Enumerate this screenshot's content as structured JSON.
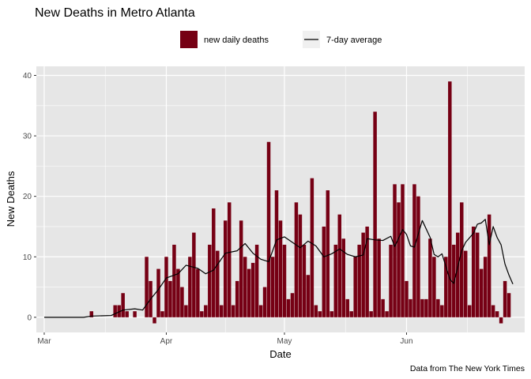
{
  "chart_data": {
    "type": "bar",
    "title": "New Deaths in Metro Atlanta",
    "xlabel": "Date",
    "ylabel": "New Deaths",
    "caption": "Data from The New York Times",
    "legend": {
      "placement": "top",
      "bar_label": "new daily deaths",
      "line_label": "7-day average"
    },
    "x_ticks": [
      {
        "label": "Mar",
        "day": 0
      },
      {
        "label": "Apr",
        "day": 31
      },
      {
        "label": "May",
        "day": 61
      },
      {
        "label": "Jun",
        "day": 92
      }
    ],
    "y_ticks": [
      0,
      10,
      20,
      30,
      40
    ],
    "xlim": [
      -2,
      122
    ],
    "ylim": [
      -2.5,
      41.5
    ],
    "grid": true,
    "colors": {
      "bar": "#760014",
      "line": "#000000",
      "panel": "#e6e6e6",
      "grid": "#ffffff"
    },
    "daily_deaths": [
      {
        "day": 12,
        "value": 1
      },
      {
        "day": 18,
        "value": 2
      },
      {
        "day": 19,
        "value": 2
      },
      {
        "day": 20,
        "value": 4
      },
      {
        "day": 21,
        "value": 1
      },
      {
        "day": 23,
        "value": 1
      },
      {
        "day": 26,
        "value": 10
      },
      {
        "day": 27,
        "value": 6
      },
      {
        "day": 28,
        "value": -1
      },
      {
        "day": 29,
        "value": 8
      },
      {
        "day": 30,
        "value": 1
      },
      {
        "day": 31,
        "value": 10
      },
      {
        "day": 32,
        "value": 6
      },
      {
        "day": 33,
        "value": 12
      },
      {
        "day": 34,
        "value": 8
      },
      {
        "day": 35,
        "value": 5
      },
      {
        "day": 36,
        "value": 2
      },
      {
        "day": 37,
        "value": 10
      },
      {
        "day": 38,
        "value": 14
      },
      {
        "day": 39,
        "value": 8
      },
      {
        "day": 40,
        "value": 1
      },
      {
        "day": 41,
        "value": 2
      },
      {
        "day": 42,
        "value": 12
      },
      {
        "day": 43,
        "value": 18
      },
      {
        "day": 44,
        "value": 11
      },
      {
        "day": 45,
        "value": 2
      },
      {
        "day": 46,
        "value": 16
      },
      {
        "day": 47,
        "value": 19
      },
      {
        "day": 48,
        "value": 2
      },
      {
        "day": 49,
        "value": 6
      },
      {
        "day": 50,
        "value": 16
      },
      {
        "day": 51,
        "value": 10
      },
      {
        "day": 52,
        "value": 8
      },
      {
        "day": 53,
        "value": 9
      },
      {
        "day": 54,
        "value": 12
      },
      {
        "day": 55,
        "value": 2
      },
      {
        "day": 56,
        "value": 5
      },
      {
        "day": 57,
        "value": 29
      },
      {
        "day": 58,
        "value": 10
      },
      {
        "day": 59,
        "value": 21
      },
      {
        "day": 60,
        "value": 16
      },
      {
        "day": 61,
        "value": 12
      },
      {
        "day": 62,
        "value": 3
      },
      {
        "day": 63,
        "value": 4
      },
      {
        "day": 64,
        "value": 19
      },
      {
        "day": 65,
        "value": 17
      },
      {
        "day": 66,
        "value": 12
      },
      {
        "day": 67,
        "value": 7
      },
      {
        "day": 68,
        "value": 23
      },
      {
        "day": 69,
        "value": 2
      },
      {
        "day": 70,
        "value": 1
      },
      {
        "day": 71,
        "value": 15
      },
      {
        "day": 72,
        "value": 21
      },
      {
        "day": 73,
        "value": 1
      },
      {
        "day": 74,
        "value": 12
      },
      {
        "day": 75,
        "value": 17
      },
      {
        "day": 76,
        "value": 13
      },
      {
        "day": 77,
        "value": 3
      },
      {
        "day": 78,
        "value": 1
      },
      {
        "day": 79,
        "value": 10
      },
      {
        "day": 80,
        "value": 12
      },
      {
        "day": 81,
        "value": 14
      },
      {
        "day": 82,
        "value": 15
      },
      {
        "day": 83,
        "value": 1
      },
      {
        "day": 84,
        "value": 34
      },
      {
        "day": 85,
        "value": 13
      },
      {
        "day": 86,
        "value": 3
      },
      {
        "day": 87,
        "value": 1
      },
      {
        "day": 88,
        "value": 12
      },
      {
        "day": 89,
        "value": 22
      },
      {
        "day": 90,
        "value": 19
      },
      {
        "day": 91,
        "value": 22
      },
      {
        "day": 92,
        "value": 6
      },
      {
        "day": 93,
        "value": 3
      },
      {
        "day": 94,
        "value": 22
      },
      {
        "day": 95,
        "value": 20
      },
      {
        "day": 96,
        "value": 3
      },
      {
        "day": 97,
        "value": 3
      },
      {
        "day": 98,
        "value": 13
      },
      {
        "day": 99,
        "value": 10
      },
      {
        "day": 100,
        "value": 3
      },
      {
        "day": 101,
        "value": 2
      },
      {
        "day": 102,
        "value": 10
      },
      {
        "day": 103,
        "value": 39
      },
      {
        "day": 104,
        "value": 12
      },
      {
        "day": 105,
        "value": 14
      },
      {
        "day": 106,
        "value": 19
      },
      {
        "day": 107,
        "value": 11
      },
      {
        "day": 108,
        "value": 2
      },
      {
        "day": 109,
        "value": 15
      },
      {
        "day": 110,
        "value": 14
      },
      {
        "day": 111,
        "value": 8
      },
      {
        "day": 112,
        "value": 10
      },
      {
        "day": 113,
        "value": 17
      },
      {
        "day": 114,
        "value": 2
      },
      {
        "day": 115,
        "value": 1
      },
      {
        "day": 116,
        "value": -1
      },
      {
        "day": 117,
        "value": 6
      },
      {
        "day": 118,
        "value": 4
      }
    ],
    "seven_day_average": [
      {
        "day": 0,
        "value": 0
      },
      {
        "day": 10,
        "value": 0
      },
      {
        "day": 12,
        "value": 0.2
      },
      {
        "day": 17,
        "value": 0.3
      },
      {
        "day": 20,
        "value": 1.2
      },
      {
        "day": 23,
        "value": 1.4
      },
      {
        "day": 25,
        "value": 1.2
      },
      {
        "day": 27,
        "value": 3.0
      },
      {
        "day": 29,
        "value": 4.6
      },
      {
        "day": 31,
        "value": 6.5
      },
      {
        "day": 34,
        "value": 7.2
      },
      {
        "day": 36,
        "value": 8.6
      },
      {
        "day": 39,
        "value": 8.1
      },
      {
        "day": 41,
        "value": 7.2
      },
      {
        "day": 43,
        "value": 7.8
      },
      {
        "day": 46,
        "value": 10.6
      },
      {
        "day": 49,
        "value": 11.0
      },
      {
        "day": 51,
        "value": 12.2
      },
      {
        "day": 53,
        "value": 10.6
      },
      {
        "day": 55,
        "value": 9.6
      },
      {
        "day": 57,
        "value": 9.2
      },
      {
        "day": 59,
        "value": 12.8
      },
      {
        "day": 61,
        "value": 13.3
      },
      {
        "day": 63,
        "value": 12.4
      },
      {
        "day": 65,
        "value": 11.5
      },
      {
        "day": 67,
        "value": 12.6
      },
      {
        "day": 69,
        "value": 11.8
      },
      {
        "day": 71,
        "value": 10.0
      },
      {
        "day": 73,
        "value": 10.5
      },
      {
        "day": 75,
        "value": 11.3
      },
      {
        "day": 77,
        "value": 10.4
      },
      {
        "day": 79,
        "value": 10.0
      },
      {
        "day": 81,
        "value": 10.3
      },
      {
        "day": 82,
        "value": 13.0
      },
      {
        "day": 84,
        "value": 12.8
      },
      {
        "day": 86,
        "value": 12.7
      },
      {
        "day": 88,
        "value": 13.4
      },
      {
        "day": 89,
        "value": 11.7
      },
      {
        "day": 91,
        "value": 14.5
      },
      {
        "day": 92,
        "value": 13.7
      },
      {
        "day": 93,
        "value": 11.8
      },
      {
        "day": 94,
        "value": 11.6
      },
      {
        "day": 96,
        "value": 16.0
      },
      {
        "day": 98,
        "value": 13.2
      },
      {
        "day": 99,
        "value": 10.4
      },
      {
        "day": 100,
        "value": 10.0
      },
      {
        "day": 101,
        "value": 10.5
      },
      {
        "day": 103,
        "value": 6.3
      },
      {
        "day": 104,
        "value": 5.6
      },
      {
        "day": 106,
        "value": 11.0
      },
      {
        "day": 107,
        "value": 12.4
      },
      {
        "day": 109,
        "value": 13.9
      },
      {
        "day": 110,
        "value": 15.4
      },
      {
        "day": 111,
        "value": 15.6
      },
      {
        "day": 112,
        "value": 16.2
      },
      {
        "day": 113,
        "value": 12.0
      },
      {
        "day": 114,
        "value": 15.0
      },
      {
        "day": 115,
        "value": 13.2
      },
      {
        "day": 116,
        "value": 12.0
      },
      {
        "day": 117,
        "value": 8.8
      },
      {
        "day": 118,
        "value": 7.0
      },
      {
        "day": 119,
        "value": 5.5
      }
    ]
  }
}
